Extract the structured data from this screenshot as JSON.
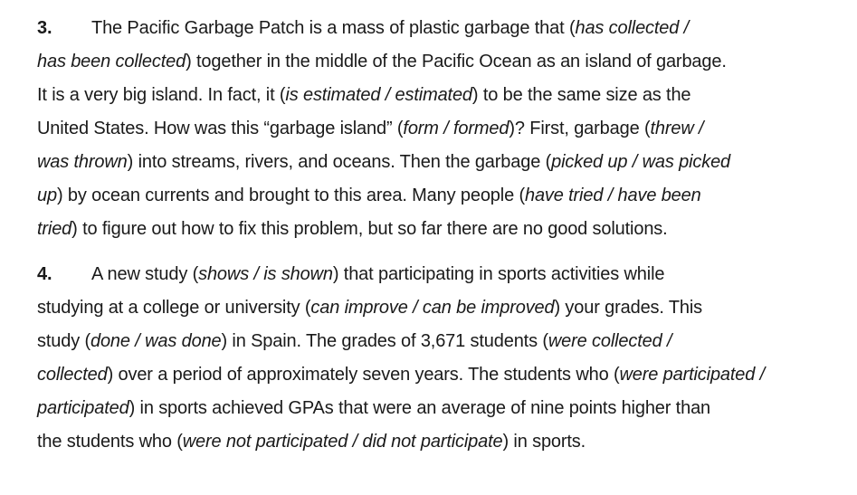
{
  "exercises": [
    {
      "number": "3.",
      "lines": [
        [
          "The Pacific Garbage Patch is a mass of plastic garbage that (",
          "has collected /",
          ""
        ],
        [
          "",
          "has been collected",
          ") together in the middle of the Pacific Ocean as an island of garbage."
        ],
        [
          "It is a very big island. In fact, it (",
          "is estimated / estimated",
          ") to be the same size as the"
        ],
        [
          "United States. How was this “garbage island” (",
          "form / formed",
          ")? First, garbage (",
          "threw /",
          ""
        ],
        [
          "",
          "was thrown",
          ") into streams, rivers, and oceans. Then the garbage (",
          "picked up / was picked",
          ""
        ],
        [
          "",
          "up",
          ") by ocean currents and brought to this area. Many people (",
          "have tried / have been",
          ""
        ],
        [
          "",
          "tried",
          ") to figure out how to fix this problem, but so far there are no good solutions."
        ]
      ]
    },
    {
      "number": "4.",
      "lines": [
        [
          "A new study (",
          "shows / is shown",
          ") that participating in sports activities while"
        ],
        [
          "studying at a college or university (",
          "can improve / can be improved",
          ") your grades. This"
        ],
        [
          "study (",
          "done / was done",
          ") in Spain. The grades of 3,671 students (",
          "were collected /",
          ""
        ],
        [
          "",
          "collected",
          ") over a period of approximately seven years. The students who (",
          "were participated /",
          ""
        ],
        [
          "",
          "participated",
          ") in sports achieved GPAs that were an average of nine points higher than"
        ],
        [
          "the students who (",
          "were not participated / did not participate",
          ") in sports."
        ]
      ]
    }
  ]
}
